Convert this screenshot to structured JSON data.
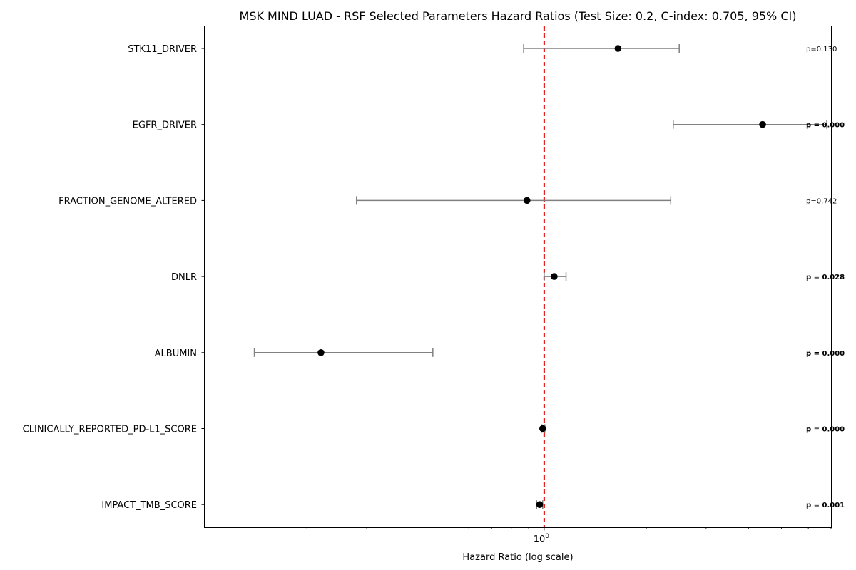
{
  "chart_data": {
    "type": "scatter",
    "title": "MSK MIND LUAD - RSF Selected Parameters Hazard Ratios (Test Size: 0.2, C-index: 0.705, 95% CI)",
    "xlabel": "Hazard Ratio (log scale)",
    "ylabel": "",
    "x_scale": "log",
    "xlim": [
      0.1,
      7.0
    ],
    "x_ticks": [
      {
        "value": 1,
        "label": "10^0"
      }
    ],
    "reference_line": {
      "value": 1,
      "color": "#e00000",
      "style": "dashed"
    },
    "grid": false,
    "marker_color": "#000000",
    "ci_color": "#808080",
    "categories": [
      "STK11_DRIVER",
      "EGFR_DRIVER",
      "FRACTION_GENOME_ALTERED",
      "DNLR",
      "ALBUMIN",
      "CLINICALLY_REPORTED_PD-L1_SCORE",
      "IMPACT_TMB_SCORE"
    ],
    "series": [
      {
        "hazard_ratio": [
          1.65,
          4.4,
          0.89,
          1.07,
          0.22,
          0.99,
          0.97
        ],
        "ci_lower": [
          0.87,
          2.4,
          0.28,
          1.0,
          0.14,
          0.985,
          0.95
        ],
        "ci_upper": [
          2.5,
          6.8,
          2.36,
          1.16,
          0.47,
          1.005,
          0.99
        ],
        "p_values": [
          "p=0.130",
          "p = 0.000",
          "p=0.742",
          "p = 0.028",
          "p = 0.000",
          "p = 0.000",
          "p = 0.001"
        ],
        "significant": [
          false,
          true,
          false,
          true,
          true,
          true,
          true
        ]
      }
    ]
  }
}
